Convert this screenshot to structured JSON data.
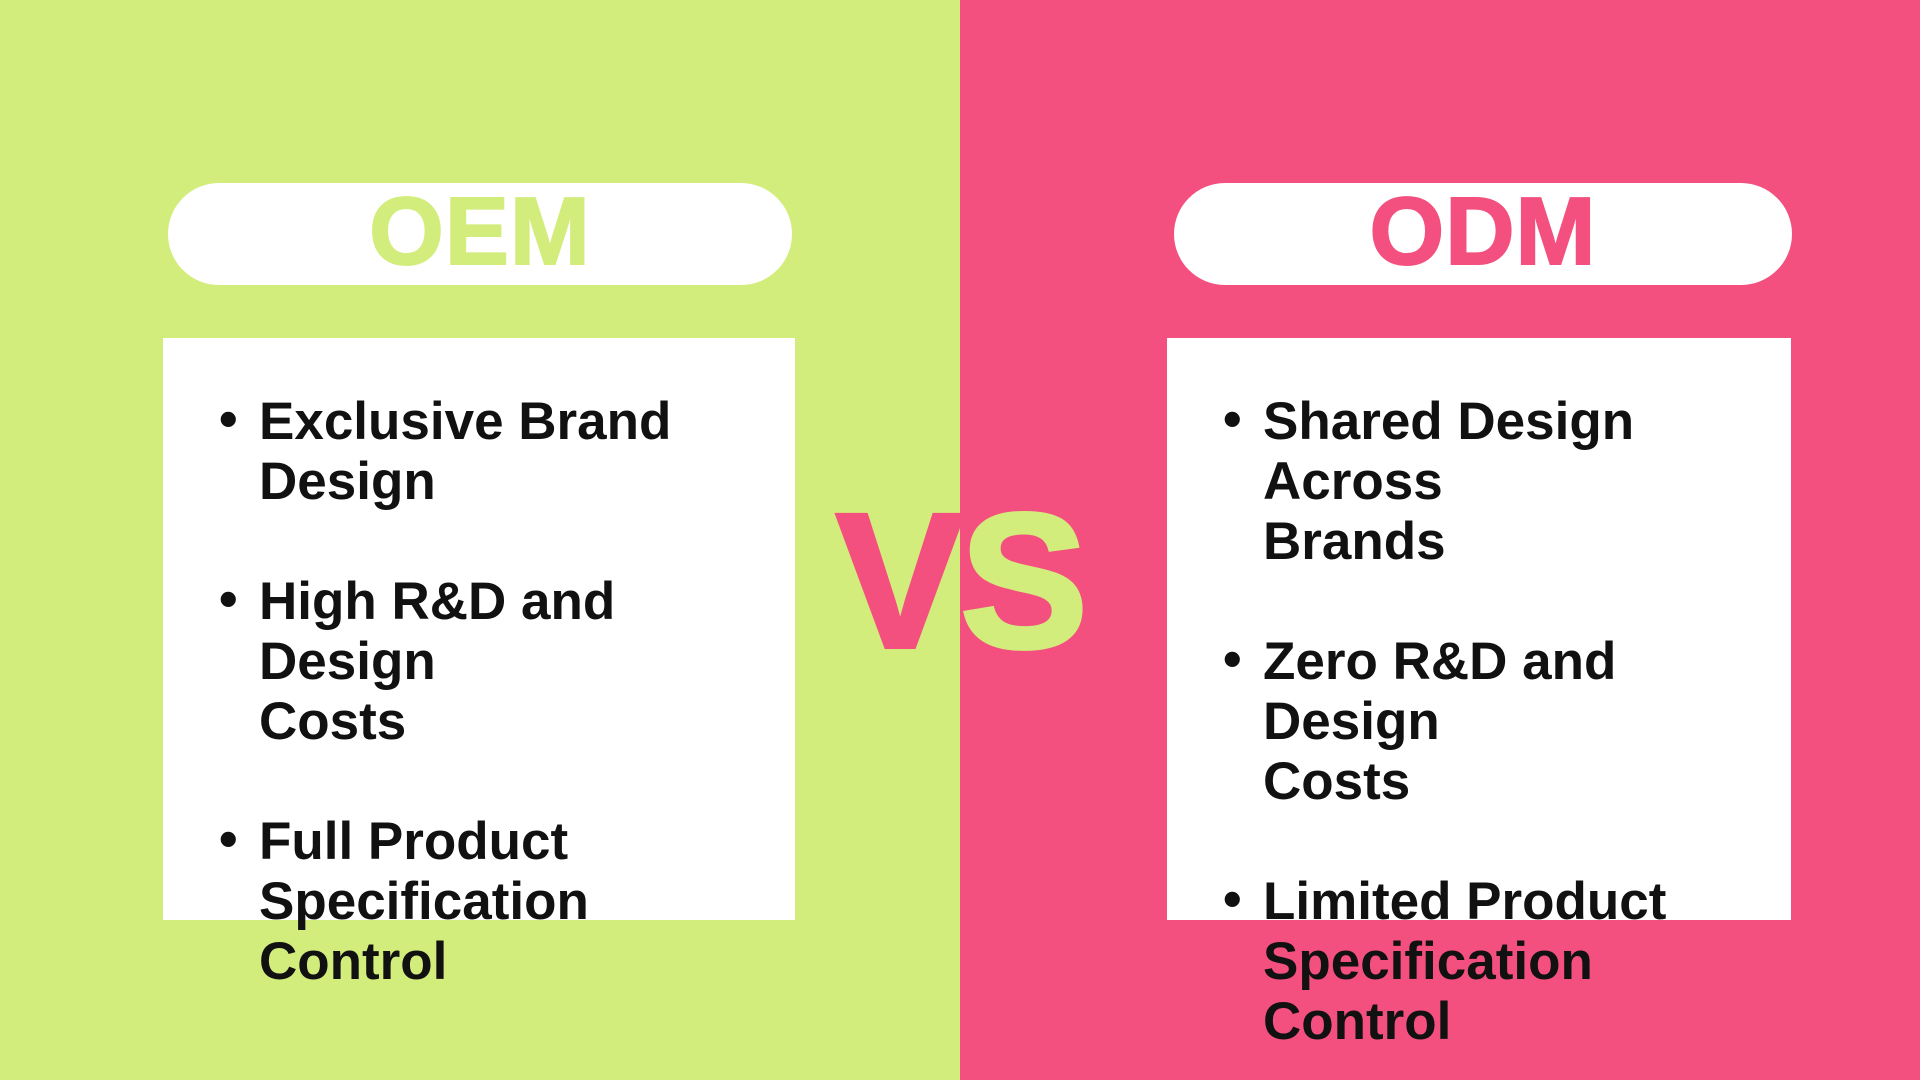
{
  "panels": {
    "left": {
      "title": "OEM",
      "bullets": [
        {
          "lines": [
            "Exclusive Brand",
            "Design"
          ]
        },
        {
          "lines": [
            "High R&D and Design",
            "Costs"
          ]
        },
        {
          "lines": [
            "Full Product",
            "Specification Control"
          ]
        }
      ]
    },
    "right": {
      "title": "ODM",
      "bullets": [
        {
          "lines": [
            "Shared Design Across",
            "Brands"
          ]
        },
        {
          "lines": [
            "Zero R&D and Design",
            "Costs"
          ]
        },
        {
          "lines": [
            "Limited Product",
            "Specification Control"
          ]
        }
      ]
    }
  },
  "vs": {
    "label": "VS",
    "first_letter": "V",
    "second_letter": "S"
  },
  "list_style": {
    "bullet_glyph": "•"
  },
  "colors": {
    "lime_green": "#d2ed7c",
    "pink": "#f4507f",
    "panel_white": "#ffffff",
    "bullet_text": "#111111"
  }
}
